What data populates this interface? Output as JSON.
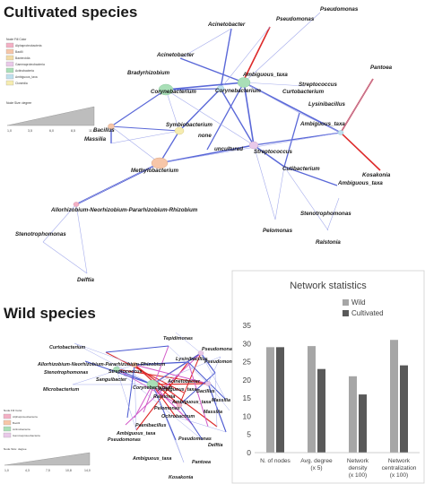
{
  "panels": {
    "cultivated": {
      "title": "Cultivated species",
      "legend": {
        "header": "Node Fill Color",
        "items": [
          {
            "label": "Alphaproteobacteria",
            "color": "#f3b0c4"
          },
          {
            "label": "Bacilli",
            "color": "#f7c6a8"
          },
          {
            "label": "Bacteroidia",
            "color": "#f2dca6"
          },
          {
            "label": "Gammaproteobacteria",
            "color": "#e9c9e9"
          },
          {
            "label": "Actinobacteria",
            "color": "#a9dfb7"
          },
          {
            "label": "Ambiguous_taxa",
            "color": "#bfe0ee"
          },
          {
            "label": "Clostridia",
            "color": "#f6ecb0"
          }
        ],
        "size_header": "Node Size: degree",
        "size_ticks": [
          "1,0",
          "3,5",
          "6,0",
          "8,5",
          "11,0"
        ]
      },
      "labels": {
        "pseudomonas_1": "Pseudomonas",
        "pseudomonas_2": "Pseudomonas",
        "acinetobacter_1": "Acinetobacter",
        "acinetobacter_2": "Acinetobacter",
        "bradyrhizobium": "Bradyrhizobium",
        "ambiguous_1": "Ambiguous_taxa",
        "corynebacterium_1": "Corynebacterium",
        "corynebacterium_2": "Corynebacterium",
        "streptococcus_1": "Streptococcus",
        "curtobacterium_1": "Curtobacterium",
        "lysinibacillus": "Lysinibacillus",
        "pantoea": "Pantoea",
        "ambiguous_2": "Ambiguous_taxa",
        "kosakonia": "Kosakonia",
        "bacillus": "Bacillus",
        "massilia": "Massilia",
        "symbiobacterium": "Symbiobacterium",
        "none": "none",
        "uncultured": "uncultured",
        "streptococcus_2": "Streptococcus",
        "methylobacterium": "Methylobacterium",
        "cutibacterium": "Cutibacterium",
        "ambiguous_3": "Ambiguous_taxa",
        "allorhizobium": "Allorhizobium-Neorhizobium-Pararhizobium-Rhizobium",
        "stenotrophomonas_1": "Stenotrophomonas",
        "stenotrophomonas_2": "Stenotrophomonas",
        "pelomonas": "Pelomonas",
        "ralstonia": "Ralstonia",
        "delftia": "Delftia"
      }
    },
    "wild": {
      "title": "Wild species",
      "legend": {
        "header": "Node Fill Color",
        "items": [
          {
            "label": "Alphaproteobacteria",
            "color": "#f3b0c4"
          },
          {
            "label": "Bacilli",
            "color": "#f7c6a8"
          },
          {
            "label": "Actinobacteria",
            "color": "#a9dfb7"
          },
          {
            "label": "Gammaproteobacteria",
            "color": "#e9c9e9"
          }
        ],
        "size_header": "Node Size: degree",
        "size_ticks": [
          "1,0",
          "4,3",
          "7,5",
          "10,8",
          "14,0"
        ]
      },
      "labels": {
        "tepidimonas": "Tepidimonas",
        "curtobacterium": "Curtobacterium",
        "pseudomonas_1": "Pseudomonas",
        "lysinibacillus": "Lysinibacillus",
        "allorhizobium": "Allorhizobium-Neorhizobium-Pararhizobium-Rhizobium",
        "stenotrophomonas": "Stenotrophomonas",
        "streptococcus": "Streptococcus",
        "pseudomonas_2": "Pseudomonas",
        "sanguibacter": "Sanguibacter",
        "acinetobacter": "Acinetobacter",
        "microbacterium": "Microbacterium",
        "corynebacterium": "Corynebacterium",
        "ambiguous_1": "Ambiguous_taxa",
        "bacillus": "Bacillus",
        "ralstonia": "Ralstonia",
        "ambiguous_2": "Ambiguous_taxa",
        "massilia_1": "Massilia",
        "massilia_2": "Massilia",
        "pelomonas": "Pelomonas",
        "ochrobactrum": "Ochrobactrum",
        "paenibacillus": "Paenibacillus",
        "ambiguous_3": "Ambiguous_taxa",
        "pseudomonas_3": "Pseudomonas",
        "pseudomonas_4": "Pseudomonas",
        "delftia": "Delftia",
        "ambiguous_4": "Ambiguous_taxa",
        "pantoea": "Pantoea",
        "kosakonia": "Kosakonia"
      }
    }
  },
  "chart_data": {
    "type": "bar",
    "title": "Network statistics",
    "categories": [
      "N. of nodes",
      "Avg. degree (x 5)",
      "Network density (x 100)",
      "Network centralization (x 100)"
    ],
    "category_lines": [
      [
        "N. of nodes"
      ],
      [
        "Avg. degree",
        "(x 5)"
      ],
      [
        "Network",
        "density",
        "(x 100)"
      ],
      [
        "Network",
        "centralization",
        "(x 100)"
      ]
    ],
    "series": [
      {
        "name": "Wild",
        "values": [
          29,
          29.3,
          21,
          31
        ],
        "color": "#a6a6a6"
      },
      {
        "name": "Cultivated",
        "values": [
          29,
          23,
          16,
          24
        ],
        "color": "#595959"
      }
    ],
    "ylim": [
      0,
      35
    ],
    "yticks": [
      "0",
      "5",
      "10",
      "15",
      "20",
      "25",
      "30",
      "35"
    ],
    "legend_position": "top-right",
    "grid": false
  }
}
